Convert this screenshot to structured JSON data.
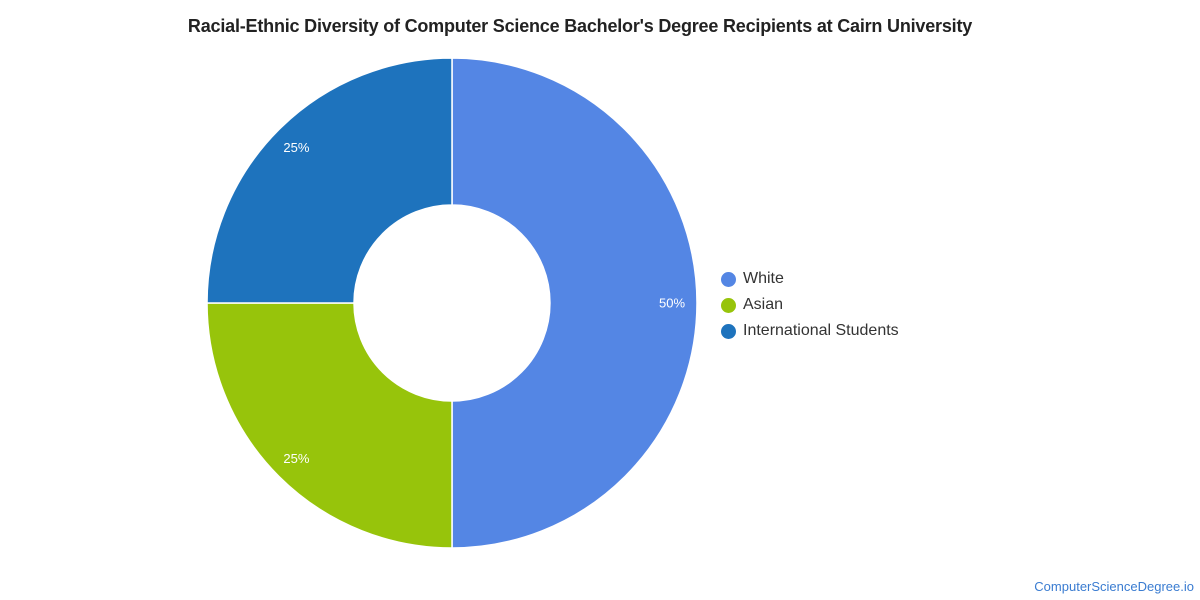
{
  "chart_data": {
    "type": "pie",
    "variant": "donut",
    "title": "Racial-Ethnic Diversity of Computer Science Bachelor's Degree Recipients at Cairn University",
    "slices": [
      {
        "label": "White",
        "value": 50,
        "display": "50%",
        "color": "#5486e4"
      },
      {
        "label": "Asian",
        "value": 25,
        "display": "25%",
        "color": "#97c40b"
      },
      {
        "label": "International Students",
        "value": 25,
        "display": "25%",
        "color": "#1e73bd"
      }
    ],
    "legend_position": "right"
  },
  "watermark": "ComputerScienceDegree.io"
}
